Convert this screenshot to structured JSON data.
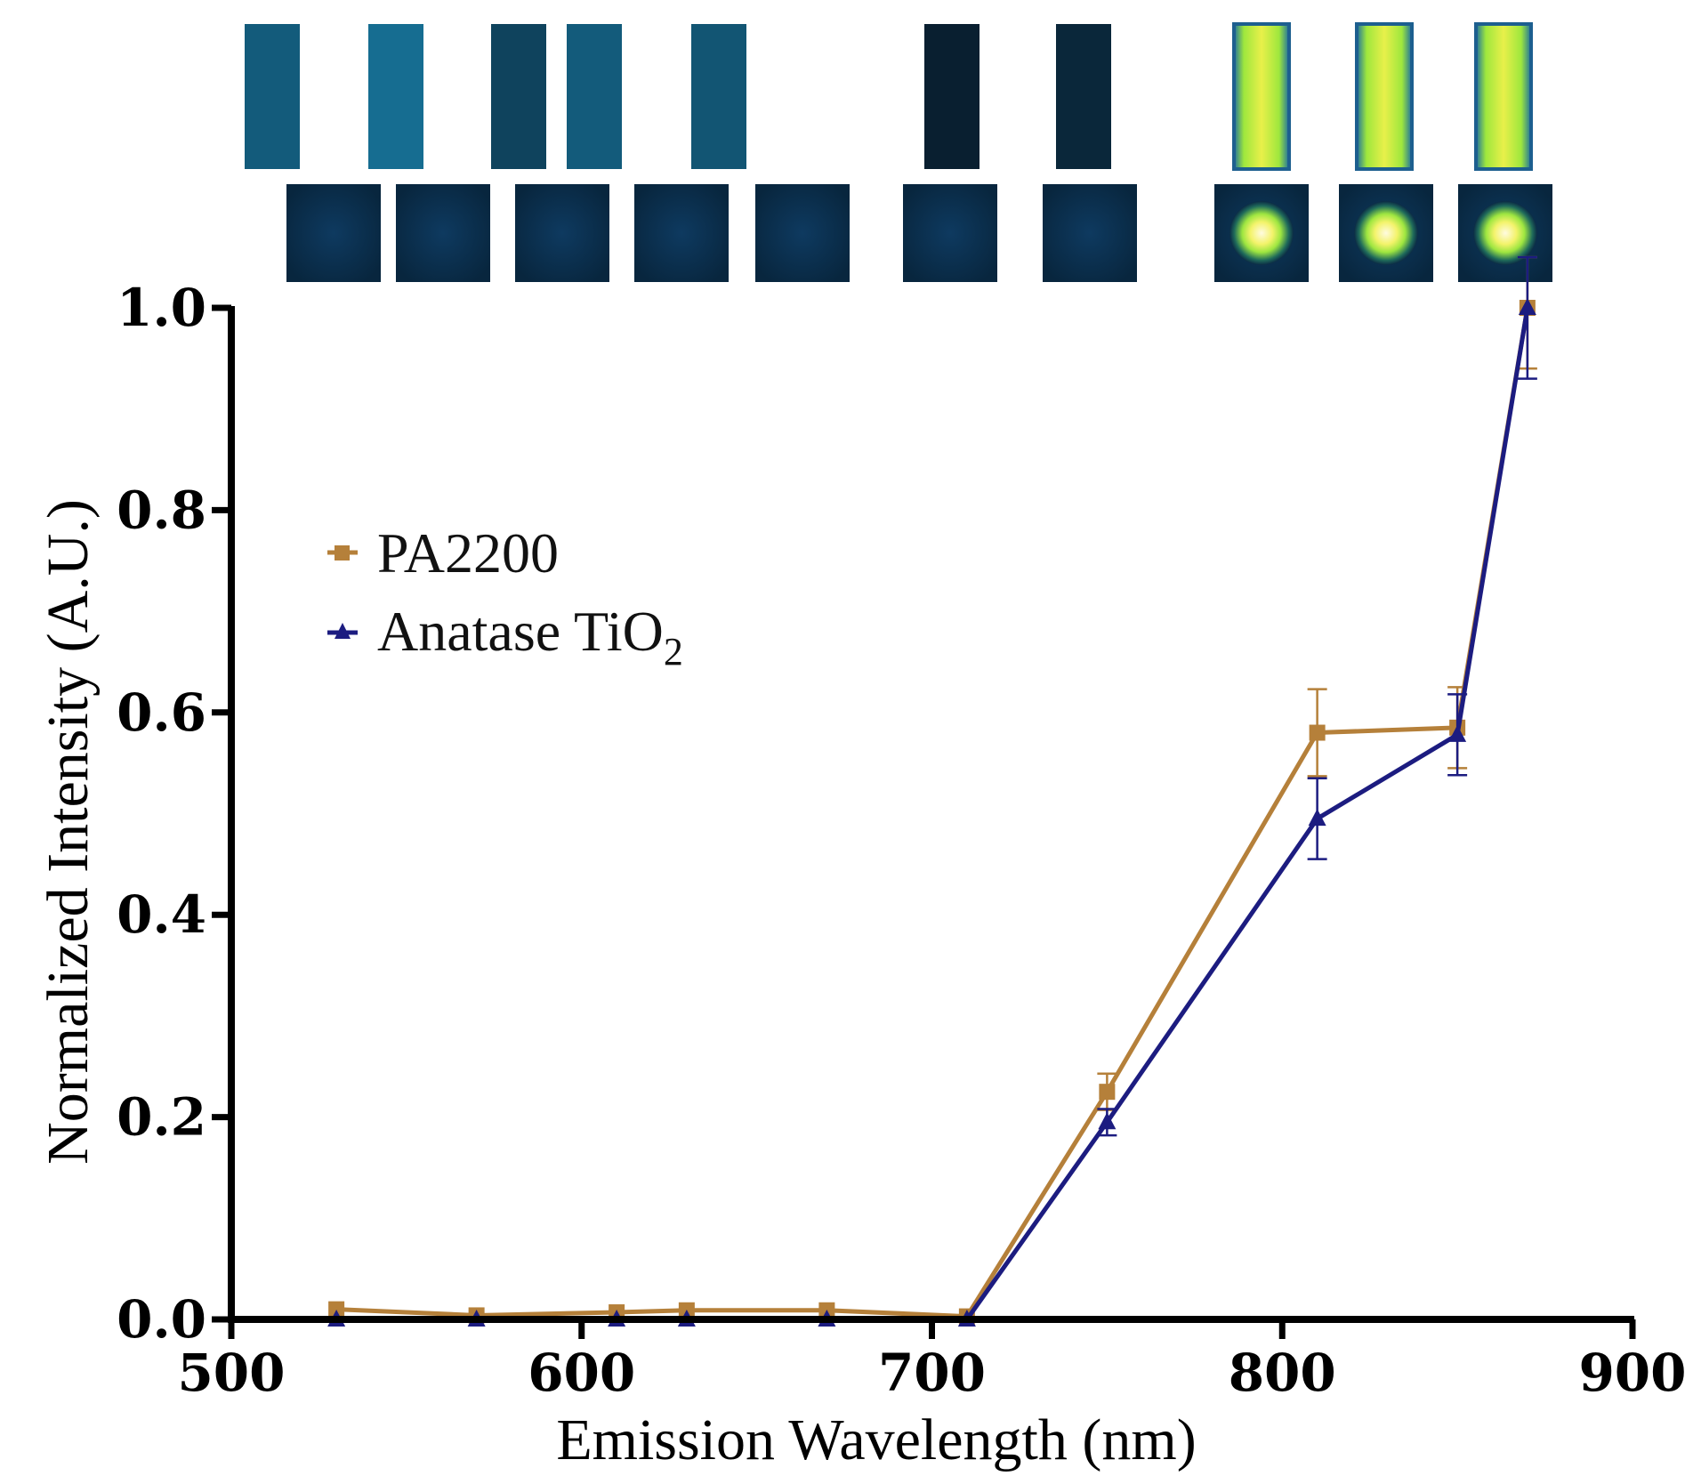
{
  "chart_data": {
    "type": "line",
    "title": "",
    "xlabel": "Emission Wavelength (nm)",
    "ylabel": "Normalized Intensity (A.U.)",
    "xlim": [
      500,
      900
    ],
    "ylim": [
      0,
      1.0
    ],
    "xticks": [
      500,
      600,
      700,
      800,
      900
    ],
    "yticks": [
      0.0,
      0.2,
      0.4,
      0.6,
      0.8,
      1.0
    ],
    "xtick_labels": [
      "500",
      "600",
      "700",
      "800",
      "900"
    ],
    "ytick_labels": [
      "0.0",
      "0.2",
      "0.4",
      "0.6",
      "0.8",
      "1.0"
    ],
    "grid": false,
    "legend_position": "upper-left",
    "x": [
      530,
      570,
      610,
      630,
      670,
      710,
      750,
      810,
      850,
      870
    ],
    "series": [
      {
        "name": "PA2200",
        "legend_main": "PA2200",
        "legend_sub": "",
        "color": "#b5803a",
        "marker": "square",
        "values": [
          0.01,
          0.004,
          0.007,
          0.009,
          0.009,
          0.003,
          0.225,
          0.58,
          0.585,
          1.0
        ],
        "errors": [
          0.0,
          0.0,
          0.0,
          0.0,
          0.0,
          0.0,
          0.018,
          0.043,
          0.04,
          0.06
        ]
      },
      {
        "name": "Anatase TiO2",
        "legend_main": "Anatase TiO",
        "legend_sub": "2",
        "color": "#1c1c80",
        "marker": "triangle",
        "values": [
          0.0,
          0.0,
          0.0,
          0.0,
          0.0,
          0.0,
          0.195,
          0.495,
          0.578,
          1.0
        ],
        "errors": [
          0.0,
          0.0,
          0.0,
          0.0,
          0.0,
          0.0,
          0.013,
          0.04,
          0.04,
          0.07
        ]
      }
    ],
    "image_strips": [
      {
        "wavelength": 530,
        "brightness": 0.55
      },
      {
        "wavelength": 570,
        "brightness": 0.7
      },
      {
        "wavelength": 610,
        "brightness": 0.35
      },
      {
        "wavelength": 630,
        "brightness": 0.55
      },
      {
        "wavelength": 670,
        "brightness": 0.5
      },
      {
        "wavelength": 710,
        "brightness": 0.05
      },
      {
        "wavelength": 750,
        "brightness": 0.12
      },
      {
        "wavelength": 810,
        "brightness": 1.0
      },
      {
        "wavelength": 850,
        "brightness": 1.0
      },
      {
        "wavelength": 870,
        "brightness": 1.0
      }
    ]
  }
}
